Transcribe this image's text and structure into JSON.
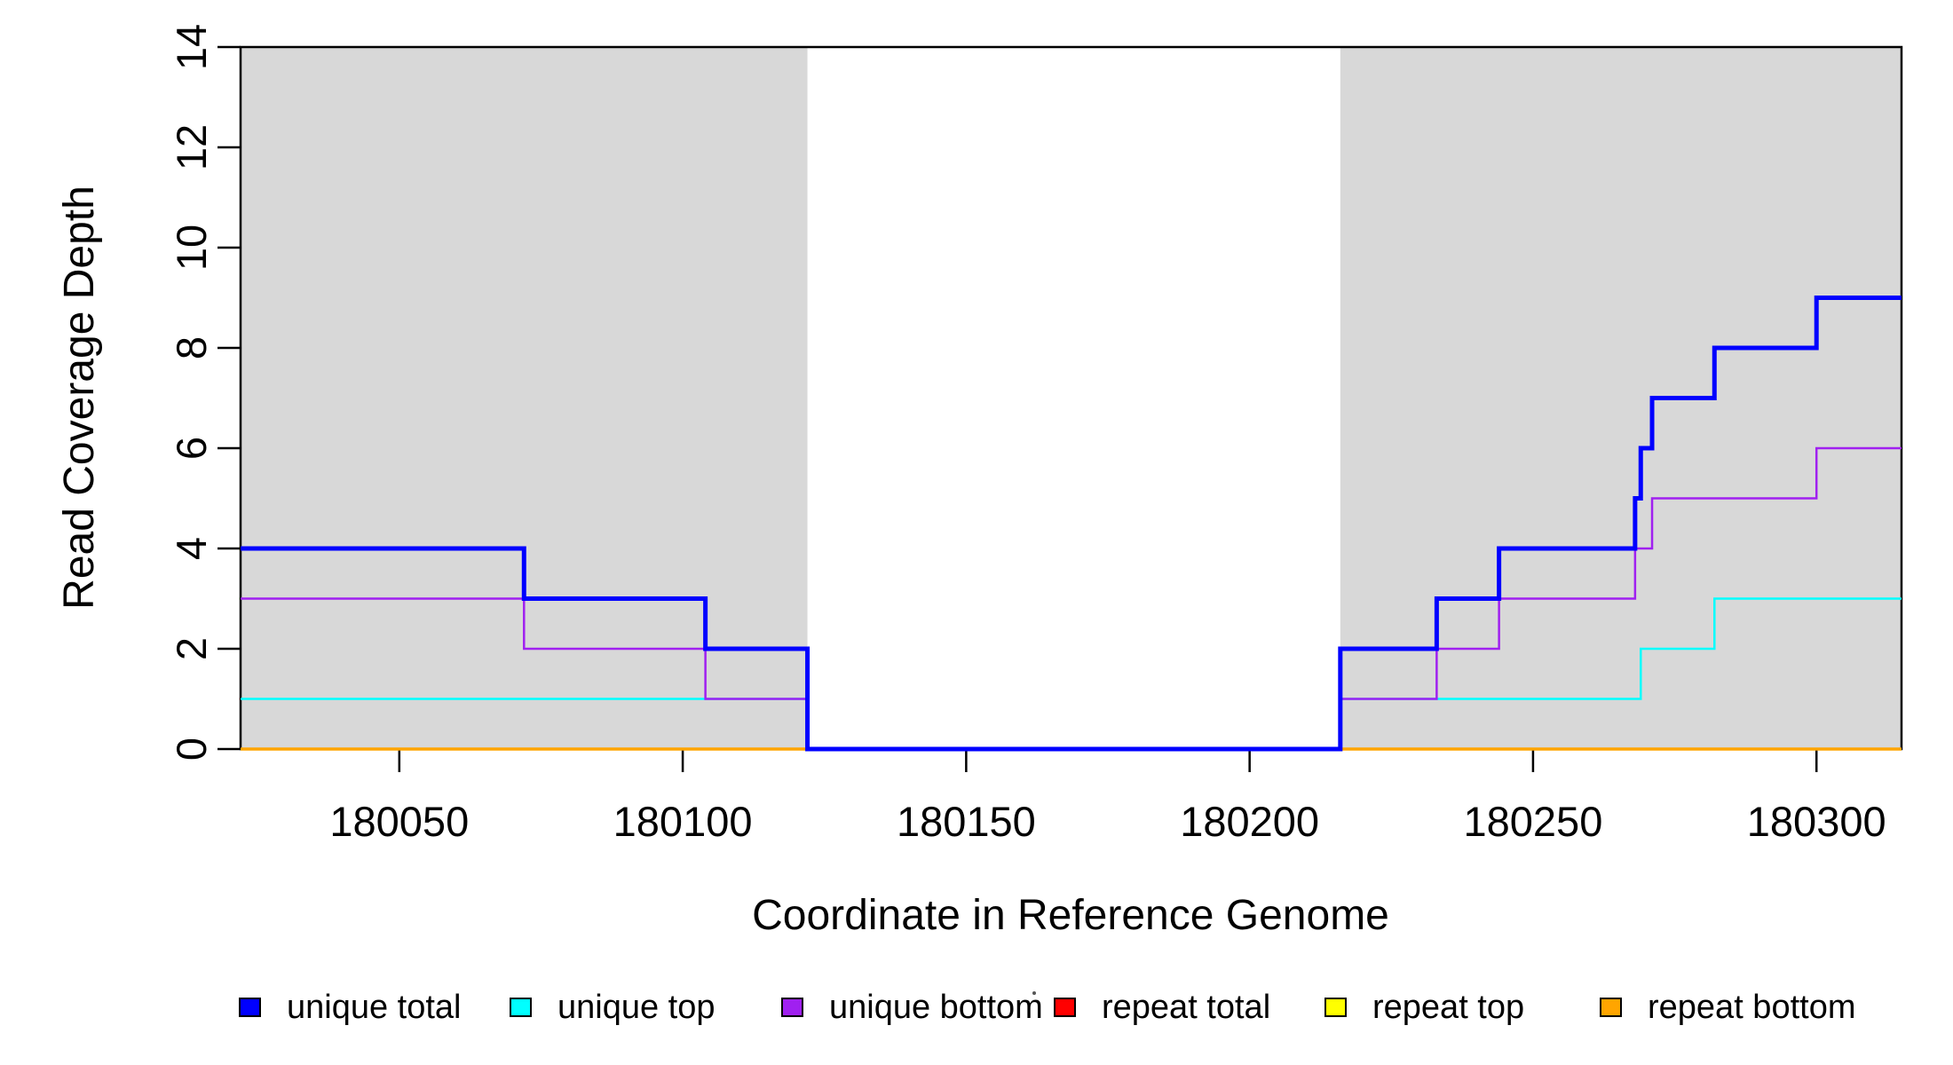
{
  "chart_data": {
    "type": "line",
    "variant": "step",
    "title": "",
    "xlabel": "Coordinate in Reference Genome",
    "ylabel": "Read Coverage Depth",
    "xlim": [
      180022,
      180315
    ],
    "ylim": [
      0,
      14
    ],
    "x_ticks": [
      180050,
      180100,
      180150,
      180200,
      180250,
      180300
    ],
    "y_ticks": [
      0,
      2,
      4,
      6,
      8,
      10,
      12,
      14
    ],
    "grid": false,
    "background_bands": {
      "color": "#D8D8D8",
      "regions": [
        [
          180022,
          180122
        ],
        [
          180216,
          180315
        ]
      ]
    },
    "series": [
      {
        "name": "unique total",
        "color": "#0000FF",
        "width": 5,
        "steps": [
          [
            180022,
            4
          ],
          [
            180072,
            3
          ],
          [
            180104,
            2
          ],
          [
            180122,
            0
          ],
          [
            180216,
            2
          ],
          [
            180233,
            3
          ],
          [
            180244,
            4
          ],
          [
            180268,
            5
          ],
          [
            180269,
            6
          ],
          [
            180271,
            7
          ],
          [
            180282,
            8
          ],
          [
            180300,
            9
          ],
          [
            180315,
            9
          ]
        ]
      },
      {
        "name": "unique top",
        "color": "#00FFFF",
        "width": 2.5,
        "steps": [
          [
            180022,
            1
          ],
          [
            180122,
            0
          ],
          [
            180216,
            1
          ],
          [
            180269,
            2
          ],
          [
            180282,
            3
          ],
          [
            180315,
            3
          ]
        ]
      },
      {
        "name": "unique bottom",
        "color": "#A020F0",
        "width": 2.5,
        "steps": [
          [
            180022,
            3
          ],
          [
            180072,
            2
          ],
          [
            180104,
            1
          ],
          [
            180122,
            0
          ],
          [
            180216,
            1
          ],
          [
            180233,
            2
          ],
          [
            180244,
            3
          ],
          [
            180268,
            4
          ],
          [
            180271,
            5
          ],
          [
            180300,
            6
          ],
          [
            180315,
            6
          ]
        ]
      },
      {
        "name": "repeat total",
        "color": "#FF0000",
        "width": 2,
        "steps": [
          [
            180022,
            0
          ],
          [
            180315,
            0
          ]
        ]
      },
      {
        "name": "repeat top",
        "color": "#FFFF00",
        "width": 2,
        "steps": [
          [
            180022,
            0
          ],
          [
            180315,
            0
          ]
        ]
      },
      {
        "name": "repeat bottom",
        "color": "#FFA500",
        "width": 3.5,
        "steps": [
          [
            180022,
            0
          ],
          [
            180315,
            0
          ]
        ]
      }
    ],
    "draw_order": [
      3,
      4,
      5,
      1,
      2,
      0
    ],
    "legend_position": "bottom"
  }
}
